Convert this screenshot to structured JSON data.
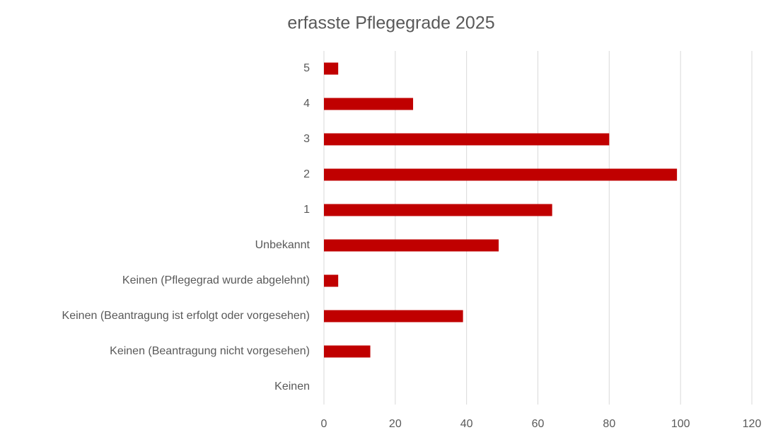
{
  "chart_data": {
    "type": "bar",
    "orientation": "horizontal",
    "title": "erfasste Pflegegrade 2025",
    "categories": [
      "5",
      "4",
      "3",
      "2",
      "1",
      "Unbekannt",
      "Keinen (Pflegegrad wurde abgelehnt)",
      "Keinen (Beantragung ist erfolgt oder vorgesehen)",
      "Keinen (Beantragung nicht vorgesehen)",
      "Keinen"
    ],
    "values": [
      4,
      25,
      80,
      99,
      64,
      49,
      4,
      39,
      13,
      0
    ],
    "color": "#c00000",
    "xlim": [
      0,
      120
    ],
    "xticks": [
      0,
      20,
      40,
      60,
      80,
      100,
      120
    ],
    "grid": true
  }
}
